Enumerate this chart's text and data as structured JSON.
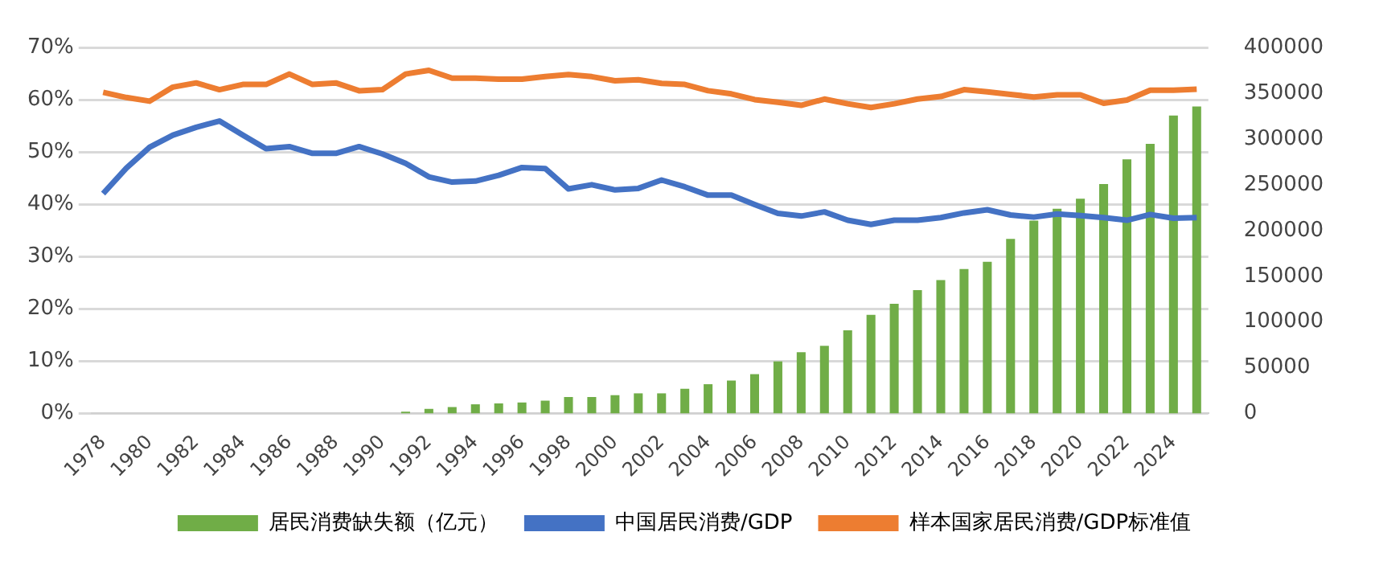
{
  "chart_data": {
    "type": "bar",
    "categories": [
      "1978",
      null,
      "1980",
      null,
      "1982",
      null,
      "1984",
      null,
      "1986",
      null,
      "1988",
      null,
      "1990",
      null,
      "1992",
      null,
      "1994",
      null,
      "1996",
      null,
      "1998",
      null,
      "2000",
      null,
      "2002",
      null,
      "2004",
      null,
      "2006",
      null,
      "2008",
      null,
      "2010",
      null,
      "2012",
      null,
      "2014",
      null,
      "2016",
      null,
      "2018",
      null,
      "2020",
      null,
      "2022",
      null,
      "2024",
      null
    ],
    "series": [
      {
        "name": "居民消费缺失额（亿元）",
        "axis": "y2",
        "color": "#70ad47",
        "values": [
          null,
          null,
          null,
          null,
          null,
          null,
          null,
          null,
          null,
          null,
          null,
          null,
          null,
          2000,
          5000,
          7000,
          10000,
          11000,
          12000,
          14000,
          18000,
          18000,
          20000,
          22000,
          22000,
          27000,
          32000,
          36000,
          43000,
          57000,
          67000,
          74000,
          91000,
          108000,
          120000,
          135000,
          146000,
          158000,
          166000,
          191000,
          211000,
          224000,
          235000,
          251000,
          278000,
          295000,
          326000,
          336000
        ]
      },
      {
        "name": "中国居民消费/GDP",
        "type": "line",
        "color": "#4472c4",
        "values": [
          42.1,
          47,
          51,
          53.3,
          54.8,
          56,
          53.3,
          50.7,
          51.1,
          49.8,
          49.8,
          51.1,
          49.7,
          47.9,
          45.3,
          44.3,
          44.5,
          45.6,
          47.1,
          46.9,
          43,
          43.8,
          42.8,
          43.1,
          44.7,
          43.4,
          41.8,
          41.8,
          40,
          38.3,
          37.8,
          38.6,
          37,
          36.2,
          37,
          37,
          37.5,
          38.4,
          39,
          38,
          37.6,
          38.2,
          37.9,
          37.5,
          37,
          38.1,
          37.4,
          37.5
        ]
      },
      {
        "name": "样本国家居民消费/GDP标准值",
        "type": "line",
        "color": "#ed7d31",
        "values": [
          61.5,
          60.5,
          59.8,
          62.5,
          63.3,
          62,
          63,
          63,
          65,
          63,
          63.3,
          61.8,
          62,
          65,
          65.7,
          64.2,
          64.2,
          64,
          64,
          64.5,
          64.9,
          64.5,
          63.7,
          63.9,
          63.2,
          63,
          61.8,
          61.2,
          60.1,
          59.6,
          59,
          60.2,
          59.3,
          58.6,
          59.3,
          60.2,
          60.7,
          62,
          61.6,
          61.1,
          60.6,
          61,
          61,
          59.4,
          60,
          61.9,
          61.9,
          62.1
        ]
      }
    ],
    "ylim": [
      0,
      70
    ],
    "yticks": [
      {
        "value": 0,
        "label": "0%"
      },
      {
        "value": 10,
        "label": "10%"
      },
      {
        "value": 20,
        "label": "20%"
      },
      {
        "value": 30,
        "label": "30%"
      },
      {
        "value": 40,
        "label": "40%"
      },
      {
        "value": 50,
        "label": "50%"
      },
      {
        "value": 60,
        "label": "60%"
      },
      {
        "value": 70,
        "label": "70%"
      }
    ],
    "y2lim": [
      0,
      400000
    ],
    "y2ticks": [
      0,
      50000,
      100000,
      150000,
      200000,
      250000,
      300000,
      350000,
      400000
    ],
    "grid": "y",
    "legend": "bottom",
    "marker": "none"
  }
}
